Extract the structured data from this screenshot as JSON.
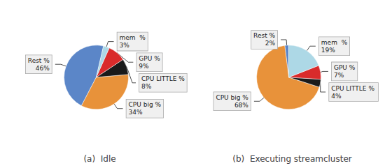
{
  "chart_data": [
    {
      "type": "pie",
      "title": "(a)  Idle",
      "categories": [
        "Rest %",
        "CPU big %",
        "CPU LITTLE %",
        "GPU %",
        "mem  %"
      ],
      "values": [
        46,
        34,
        8,
        9,
        3
      ],
      "value_labels": [
        "46%",
        "34%",
        "8%",
        "9%",
        "3%"
      ],
      "colors": [
        "#5b86c8",
        "#e8923a",
        "#1a1a1a",
        "#d92b2b",
        "#add8e6"
      ],
      "data_labels": true
    },
    {
      "type": "pie",
      "title": "(b)  Executing streamcluster",
      "categories": [
        "Rest %",
        "CPU big %",
        "CPU LITTLE %",
        "GPU %",
        "mem  %"
      ],
      "values": [
        2,
        68,
        4,
        7,
        19
      ],
      "value_labels": [
        "2%",
        "68%",
        "4%",
        "7%",
        "19%"
      ],
      "colors": [
        "#5b86c8",
        "#e8923a",
        "#1a1a1a",
        "#d92b2b",
        "#add8e6"
      ],
      "data_labels": true
    }
  ]
}
